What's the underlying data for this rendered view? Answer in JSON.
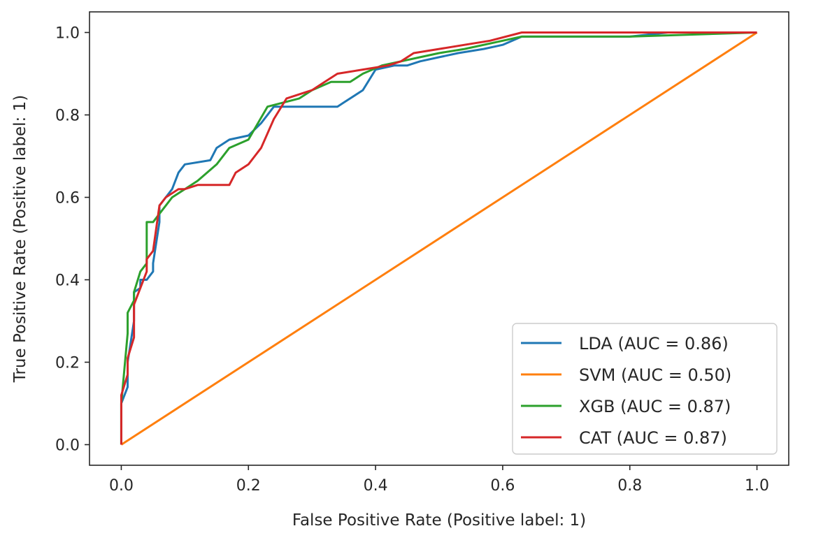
{
  "chart_data": {
    "type": "line",
    "title": "",
    "xlabel": "False Positive Rate (Positive label: 1)",
    "ylabel": "True Positive Rate (Positive label: 1)",
    "xlim": [
      -0.05,
      1.05
    ],
    "ylim": [
      -0.05,
      1.05
    ],
    "xticks": [
      "0.0",
      "0.2",
      "0.4",
      "0.6",
      "0.8",
      "1.0"
    ],
    "yticks": [
      "0.0",
      "0.2",
      "0.4",
      "0.6",
      "0.8",
      "1.0"
    ],
    "grid": false,
    "legend_position": "lower-right",
    "series": [
      {
        "name": "LDA (AUC = 0.86)",
        "color": "#1f77b4",
        "x": [
          0,
          0,
          0.01,
          0.01,
          0.02,
          0.02,
          0.03,
          0.03,
          0.04,
          0.05,
          0.05,
          0.06,
          0.06,
          0.07,
          0.08,
          0.09,
          0.1,
          0.14,
          0.15,
          0.17,
          0.2,
          0.22,
          0.24,
          0.27,
          0.34,
          0.35,
          0.38,
          0.4,
          0.43,
          0.45,
          0.47,
          0.5,
          0.53,
          0.57,
          0.6,
          0.63,
          0.68,
          0.8,
          0.86,
          1.0
        ],
        "y": [
          0,
          0.1,
          0.14,
          0.2,
          0.3,
          0.37,
          0.38,
          0.4,
          0.4,
          0.42,
          0.44,
          0.54,
          0.58,
          0.6,
          0.62,
          0.66,
          0.68,
          0.69,
          0.72,
          0.74,
          0.75,
          0.78,
          0.82,
          0.82,
          0.82,
          0.83,
          0.86,
          0.91,
          0.92,
          0.92,
          0.93,
          0.94,
          0.95,
          0.96,
          0.97,
          0.99,
          0.99,
          0.99,
          1.0,
          1.0
        ]
      },
      {
        "name": "SVM (AUC = 0.50)",
        "color": "#ff7f0e",
        "x": [
          0,
          1.0
        ],
        "y": [
          0,
          1.0
        ]
      },
      {
        "name": "XGB (AUC = 0.87)",
        "color": "#2ca02c",
        "x": [
          0,
          0,
          0.01,
          0.01,
          0.02,
          0.02,
          0.03,
          0.04,
          0.04,
          0.05,
          0.06,
          0.07,
          0.08,
          0.1,
          0.12,
          0.15,
          0.17,
          0.2,
          0.23,
          0.28,
          0.3,
          0.33,
          0.36,
          0.38,
          0.41,
          0.44,
          0.47,
          0.5,
          0.54,
          0.6,
          0.63,
          0.8,
          1.0
        ],
        "y": [
          0,
          0.1,
          0.27,
          0.32,
          0.35,
          0.37,
          0.42,
          0.44,
          0.54,
          0.54,
          0.56,
          0.58,
          0.6,
          0.62,
          0.64,
          0.68,
          0.72,
          0.74,
          0.82,
          0.84,
          0.86,
          0.88,
          0.88,
          0.9,
          0.92,
          0.93,
          0.94,
          0.95,
          0.96,
          0.98,
          0.99,
          0.99,
          1.0
        ]
      },
      {
        "name": "CAT (AUC = 0.87)",
        "color": "#d62728",
        "x": [
          0,
          0,
          0.01,
          0.01,
          0.02,
          0.02,
          0.03,
          0.04,
          0.04,
          0.05,
          0.06,
          0.07,
          0.09,
          0.1,
          0.12,
          0.17,
          0.18,
          0.2,
          0.21,
          0.22,
          0.24,
          0.26,
          0.3,
          0.32,
          0.34,
          0.38,
          0.42,
          0.44,
          0.46,
          0.5,
          0.54,
          0.58,
          0.63,
          0.7,
          1.0
        ],
        "y": [
          0,
          0.12,
          0.17,
          0.21,
          0.26,
          0.34,
          0.38,
          0.42,
          0.45,
          0.47,
          0.58,
          0.6,
          0.62,
          0.62,
          0.63,
          0.63,
          0.66,
          0.68,
          0.7,
          0.72,
          0.79,
          0.84,
          0.86,
          0.88,
          0.9,
          0.91,
          0.92,
          0.93,
          0.95,
          0.96,
          0.97,
          0.98,
          1.0,
          1.0,
          1.0
        ]
      }
    ]
  }
}
